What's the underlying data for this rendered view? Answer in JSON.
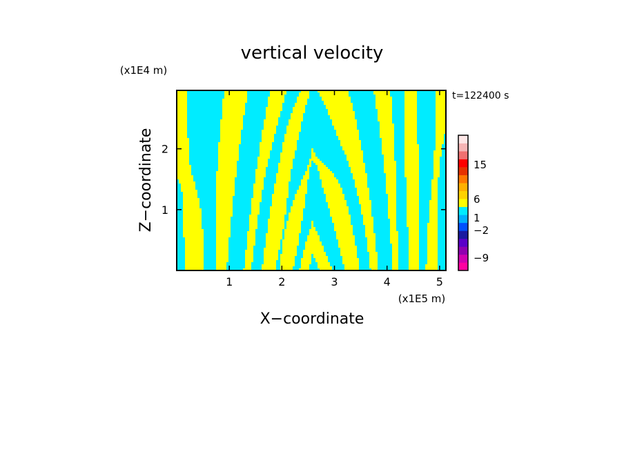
{
  "chart_data": {
    "type": "heatmap",
    "title": "vertical velocity",
    "time_label": "t=122400 s",
    "xlabel": "X−coordinate",
    "ylabel": "Z−coordinate",
    "x_unit": "(x1E5 m)",
    "y_unit": "(x1E4 m)",
    "xlim": [
      0,
      5.12
    ],
    "ylim": [
      0,
      2.96
    ],
    "xticks": [
      {
        "value": 1,
        "label": "1"
      },
      {
        "value": 2,
        "label": "2"
      },
      {
        "value": 3,
        "label": "3"
      },
      {
        "value": 4,
        "label": "4"
      },
      {
        "value": 5,
        "label": "5"
      }
    ],
    "yticks": [
      {
        "value": 1,
        "label": "1"
      },
      {
        "value": 2,
        "label": "2"
      }
    ],
    "colors": {
      "positive_fill": "#ffff00",
      "negative_fill": "#00ecff",
      "background": "#ffffff"
    },
    "colorbar": {
      "tick_labels": [
        {
          "label": "15",
          "level": 15
        },
        {
          "label": "6",
          "level": 6
        },
        {
          "label": "1",
          "level": 1
        },
        {
          "label": "−2",
          "level": -2
        },
        {
          "label": "−9",
          "level": -9
        }
      ],
      "bands": [
        {
          "color": "#ff00a0"
        },
        {
          "color": "#d000b0"
        },
        {
          "color": "#9000b0"
        },
        {
          "color": "#5a00c8"
        },
        {
          "color": "#1a1aa0"
        },
        {
          "color": "#0050ff"
        },
        {
          "color": "#00b0ff"
        },
        {
          "color": "#00ecff"
        },
        {
          "color": "#ffff00"
        },
        {
          "color": "#ffd200"
        },
        {
          "color": "#ffb000"
        },
        {
          "color": "#ff7800"
        },
        {
          "color": "#e63200"
        },
        {
          "color": "#ff0000"
        },
        {
          "color": "#f07070"
        },
        {
          "color": "#f5b4b4"
        },
        {
          "color": "#fde6e6"
        }
      ]
    }
  }
}
